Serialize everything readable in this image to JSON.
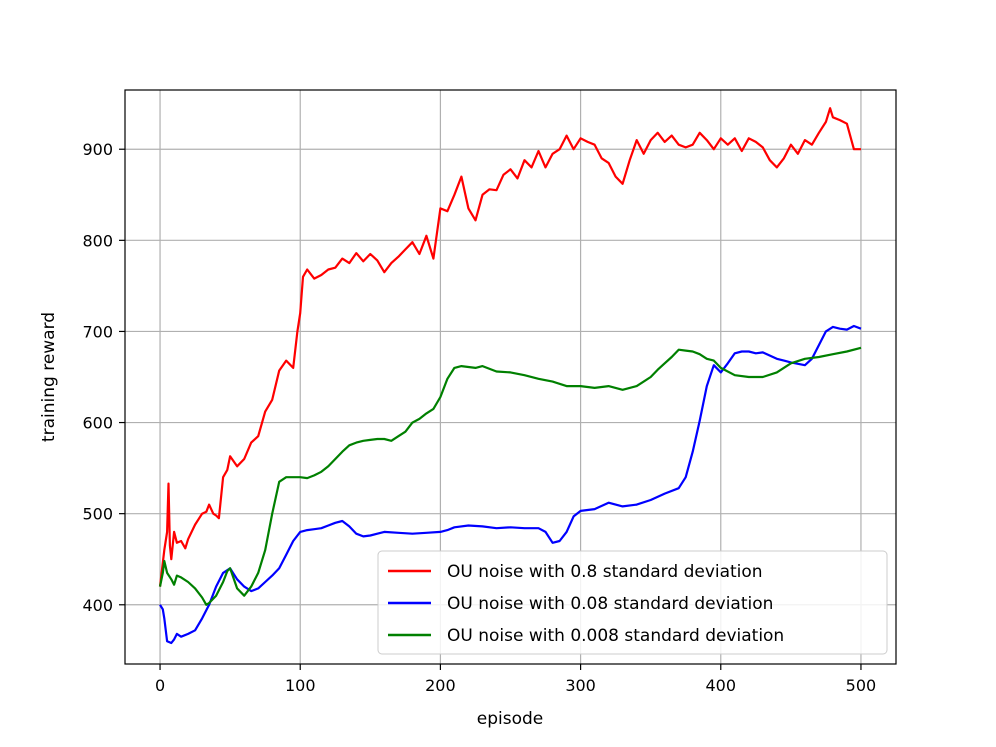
{
  "chart_data": {
    "type": "line",
    "title": "",
    "xlabel": "episode",
    "ylabel": "training reward",
    "xlim": [
      -25,
      525
    ],
    "ylim": [
      335,
      965
    ],
    "xticks": [
      0,
      100,
      200,
      300,
      400,
      500
    ],
    "yticks": [
      400,
      500,
      600,
      700,
      800,
      900
    ],
    "grid": true,
    "legend_position": "lower-right",
    "series": [
      {
        "name": "OU noise with 0.8 standard deviation",
        "color": "#ff0000",
        "x": [
          0,
          3,
          5,
          6,
          7,
          8,
          10,
          12,
          15,
          18,
          20,
          25,
          30,
          33,
          35,
          38,
          40,
          42,
          45,
          48,
          50,
          55,
          60,
          65,
          70,
          75,
          80,
          85,
          90,
          95,
          98,
          100,
          102,
          105,
          110,
          115,
          120,
          125,
          130,
          135,
          140,
          145,
          150,
          155,
          160,
          165,
          170,
          175,
          180,
          185,
          190,
          195,
          200,
          205,
          210,
          215,
          220,
          225,
          230,
          235,
          240,
          245,
          250,
          255,
          260,
          265,
          270,
          275,
          280,
          285,
          290,
          295,
          300,
          305,
          310,
          315,
          320,
          325,
          330,
          335,
          340,
          345,
          350,
          355,
          360,
          365,
          370,
          375,
          380,
          385,
          390,
          395,
          400,
          405,
          410,
          415,
          420,
          425,
          430,
          435,
          440,
          445,
          450,
          455,
          460,
          465,
          470,
          475,
          478,
          480,
          485,
          490,
          495,
          500
        ],
        "y": [
          420,
          460,
          480,
          533,
          465,
          450,
          480,
          468,
          470,
          462,
          472,
          488,
          500,
          502,
          510,
          500,
          498,
          495,
          540,
          548,
          563,
          552,
          560,
          578,
          585,
          612,
          625,
          657,
          668,
          660,
          700,
          720,
          760,
          768,
          758,
          762,
          768,
          770,
          780,
          775,
          786,
          777,
          785,
          778,
          765,
          775,
          782,
          790,
          798,
          785,
          805,
          780,
          835,
          832,
          850,
          870,
          835,
          822,
          850,
          856,
          855,
          872,
          878,
          868,
          888,
          880,
          898,
          880,
          895,
          900,
          915,
          900,
          912,
          908,
          905,
          890,
          885,
          870,
          862,
          888,
          910,
          895,
          910,
          918,
          908,
          915,
          905,
          902,
          905,
          918,
          910,
          900,
          912,
          905,
          912,
          898,
          912,
          908,
          902,
          888,
          880,
          890,
          905,
          895,
          910,
          905,
          918,
          930,
          945,
          935,
          932,
          928,
          900,
          900
        ]
      },
      {
        "name": "OU noise with 0.08 standard deviation",
        "color": "#0000ff",
        "x": [
          0,
          2,
          3,
          5,
          8,
          10,
          12,
          15,
          20,
          25,
          30,
          35,
          40,
          45,
          50,
          55,
          60,
          65,
          70,
          75,
          80,
          85,
          90,
          95,
          100,
          105,
          110,
          115,
          120,
          125,
          130,
          135,
          140,
          145,
          150,
          155,
          160,
          170,
          180,
          190,
          200,
          205,
          210,
          220,
          230,
          240,
          250,
          260,
          270,
          275,
          280,
          285,
          290,
          295,
          300,
          305,
          310,
          320,
          330,
          340,
          350,
          360,
          370,
          375,
          380,
          385,
          390,
          395,
          400,
          405,
          410,
          415,
          420,
          425,
          430,
          440,
          445,
          450,
          460,
          465,
          470,
          475,
          480,
          485,
          490,
          495,
          500
        ],
        "y": [
          400,
          395,
          385,
          360,
          358,
          362,
          368,
          365,
          368,
          372,
          385,
          400,
          420,
          435,
          440,
          428,
          420,
          415,
          418,
          425,
          432,
          440,
          455,
          470,
          480,
          482,
          483,
          484,
          487,
          490,
          492,
          486,
          478,
          475,
          476,
          478,
          480,
          479,
          478,
          479,
          480,
          482,
          485,
          487,
          486,
          484,
          485,
          484,
          484,
          480,
          468,
          470,
          480,
          497,
          503,
          504,
          505,
          512,
          508,
          510,
          515,
          522,
          528,
          540,
          568,
          602,
          640,
          663,
          655,
          665,
          676,
          678,
          678,
          676,
          677,
          670,
          668,
          666,
          663,
          670,
          685,
          700,
          705,
          703,
          702,
          706,
          703
        ]
      },
      {
        "name": "OU noise with 0.008 standard deviation",
        "color": "#008000",
        "x": [
          0,
          2,
          3,
          5,
          8,
          10,
          12,
          15,
          20,
          25,
          30,
          33,
          35,
          40,
          45,
          48,
          50,
          55,
          60,
          65,
          70,
          75,
          80,
          85,
          90,
          95,
          100,
          105,
          110,
          115,
          120,
          125,
          130,
          135,
          140,
          145,
          150,
          155,
          160,
          165,
          170,
          175,
          180,
          185,
          190,
          195,
          200,
          205,
          210,
          215,
          220,
          225,
          230,
          240,
          250,
          260,
          270,
          280,
          290,
          300,
          310,
          320,
          330,
          340,
          350,
          355,
          360,
          365,
          370,
          375,
          380,
          385,
          390,
          395,
          400,
          410,
          420,
          430,
          440,
          450,
          460,
          470,
          480,
          490,
          500
        ],
        "y": [
          420,
          435,
          448,
          435,
          428,
          422,
          432,
          430,
          425,
          418,
          408,
          400,
          402,
          410,
          425,
          437,
          440,
          418,
          410,
          420,
          435,
          460,
          500,
          535,
          540,
          540,
          540,
          539,
          542,
          546,
          552,
          560,
          568,
          575,
          578,
          580,
          581,
          582,
          582,
          580,
          585,
          590,
          600,
          604,
          610,
          615,
          628,
          648,
          660,
          662,
          661,
          660,
          662,
          656,
          655,
          652,
          648,
          645,
          640,
          640,
          638,
          640,
          636,
          640,
          650,
          658,
          665,
          672,
          680,
          679,
          678,
          675,
          670,
          668,
          660,
          652,
          650,
          650,
          655,
          665,
          670,
          672,
          675,
          678,
          682
        ]
      }
    ]
  }
}
